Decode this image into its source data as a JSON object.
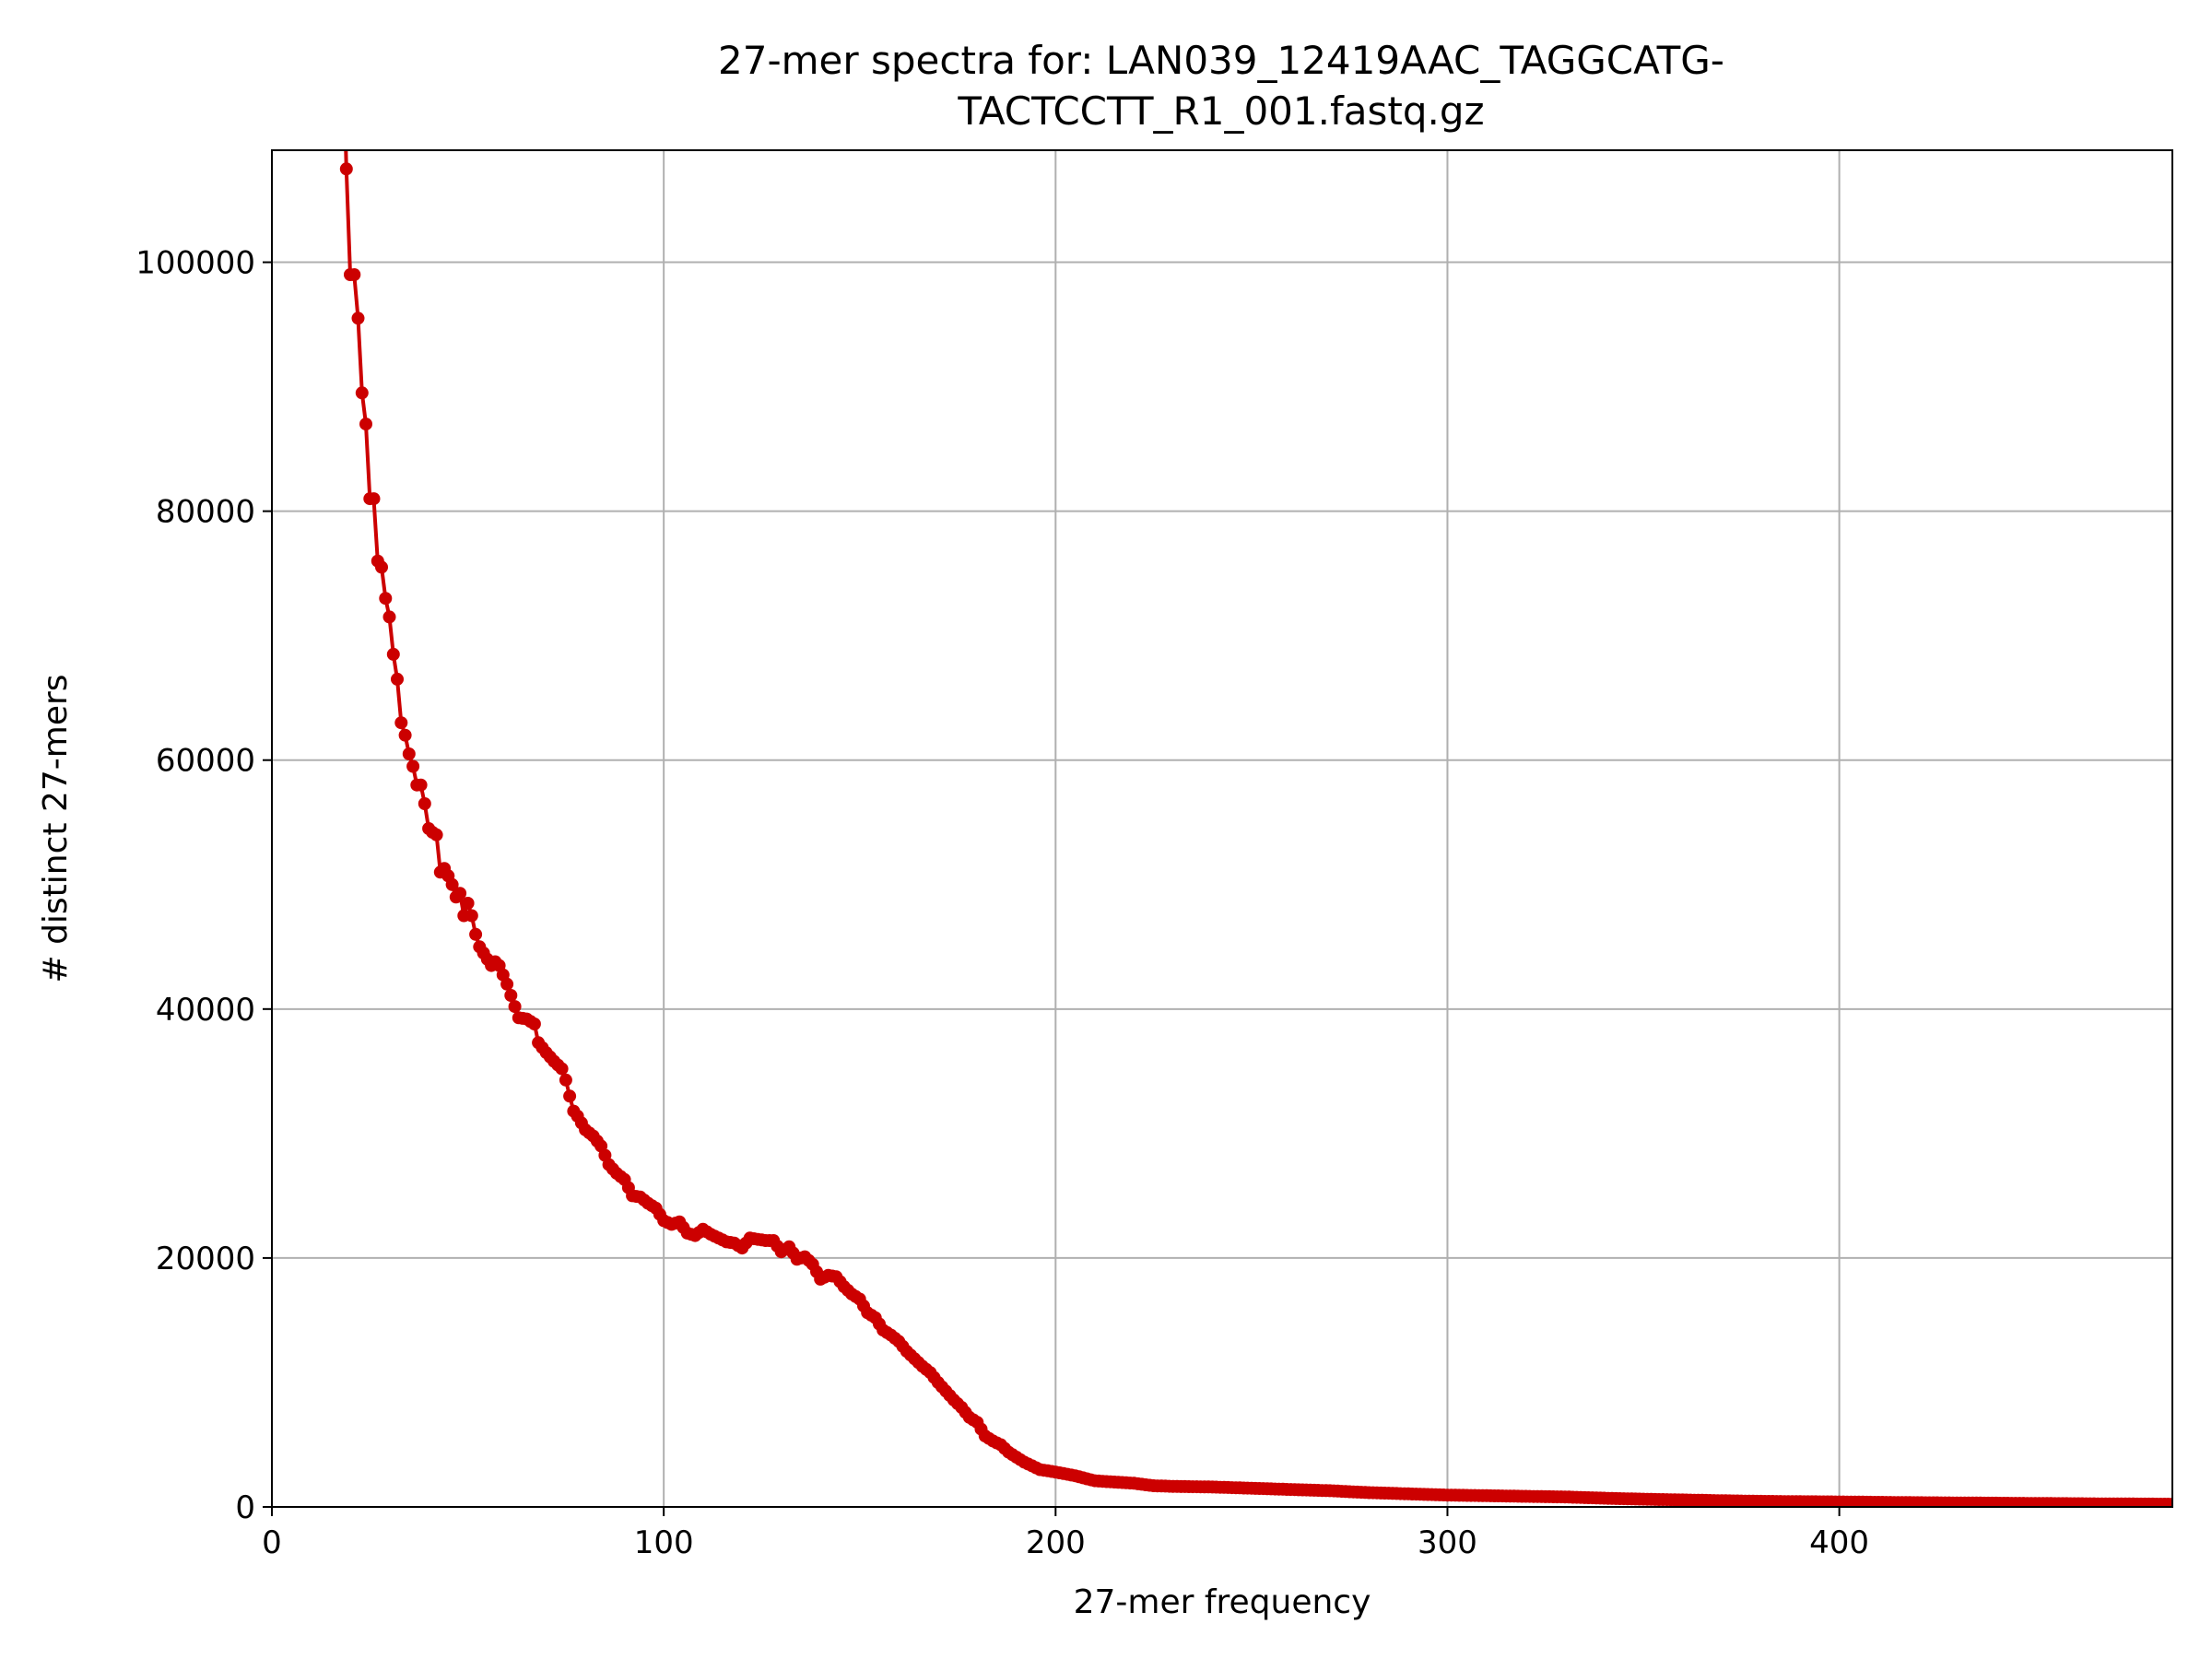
{
  "chart_data": {
    "type": "line",
    "title_lines": [
      "27-mer spectra for: LAN039_12419AAC_TAGGCATG-",
      "TACTCCTT_R1_001.fastq.gz"
    ],
    "xlabel": "27-mer frequency",
    "ylabel": "# distinct 27-mers",
    "xlim": [
      0,
      485
    ],
    "ylim": [
      0,
      109000
    ],
    "xticks": [
      0,
      100,
      200,
      300,
      400
    ],
    "yticks": [
      0,
      20000,
      40000,
      60000,
      80000,
      100000
    ],
    "grid": true,
    "series_color": "#cc0000",
    "anchor_points": [
      [
        18,
        120000
      ],
      [
        19,
        107500
      ],
      [
        20,
        99000
      ],
      [
        21,
        99000
      ],
      [
        22,
        95500
      ],
      [
        23,
        89500
      ],
      [
        24,
        87000
      ],
      [
        25,
        81000
      ],
      [
        26,
        81000
      ],
      [
        27,
        76000
      ],
      [
        28,
        75500
      ],
      [
        29,
        73000
      ],
      [
        30,
        71500
      ],
      [
        31,
        68500
      ],
      [
        32,
        66500
      ],
      [
        33,
        63000
      ],
      [
        34,
        62000
      ],
      [
        35,
        60500
      ],
      [
        36,
        59500
      ],
      [
        37,
        58000
      ],
      [
        38,
        58000
      ],
      [
        39,
        56500
      ],
      [
        40,
        54500
      ],
      [
        41,
        54200
      ],
      [
        42,
        54000
      ],
      [
        43,
        51000
      ],
      [
        44,
        51300
      ],
      [
        45,
        50700
      ],
      [
        46,
        50000
      ],
      [
        47,
        49000
      ],
      [
        48,
        49300
      ],
      [
        49,
        47500
      ],
      [
        50,
        48500
      ],
      [
        51,
        47500
      ],
      [
        52,
        46000
      ],
      [
        53,
        45000
      ],
      [
        54,
        44500
      ],
      [
        55,
        44000
      ],
      [
        56,
        43500
      ],
      [
        57,
        43800
      ],
      [
        58,
        43500
      ],
      [
        60,
        42000
      ],
      [
        62,
        40200
      ],
      [
        63,
        39300
      ],
      [
        65,
        39200
      ],
      [
        67,
        38800
      ],
      [
        68,
        37300
      ],
      [
        70,
        36500
      ],
      [
        72,
        35800
      ],
      [
        74,
        35200
      ],
      [
        75,
        34300
      ],
      [
        76,
        33000
      ],
      [
        77,
        31800
      ],
      [
        78,
        31400
      ],
      [
        80,
        30300
      ],
      [
        82,
        29800
      ],
      [
        84,
        29000
      ],
      [
        86,
        27500
      ],
      [
        88,
        26800
      ],
      [
        90,
        26300
      ],
      [
        92,
        25000
      ],
      [
        94,
        24900
      ],
      [
        96,
        24400
      ],
      [
        98,
        24000
      ],
      [
        100,
        23000
      ],
      [
        102,
        22700
      ],
      [
        104,
        22900
      ],
      [
        106,
        22000
      ],
      [
        108,
        21800
      ],
      [
        110,
        22300
      ],
      [
        112,
        21900
      ],
      [
        114,
        21600
      ],
      [
        116,
        21300
      ],
      [
        118,
        21200
      ],
      [
        120,
        20800
      ],
      [
        122,
        21600
      ],
      [
        124,
        21500
      ],
      [
        126,
        21400
      ],
      [
        128,
        21400
      ],
      [
        130,
        20500
      ],
      [
        132,
        20900
      ],
      [
        134,
        19900
      ],
      [
        136,
        20100
      ],
      [
        138,
        19500
      ],
      [
        140,
        18300
      ],
      [
        142,
        18600
      ],
      [
        144,
        18500
      ],
      [
        146,
        17700
      ],
      [
        148,
        17100
      ],
      [
        150,
        16700
      ],
      [
        152,
        15600
      ],
      [
        154,
        15200
      ],
      [
        156,
        14200
      ],
      [
        158,
        13800
      ],
      [
        160,
        13300
      ],
      [
        162,
        12500
      ],
      [
        164,
        11900
      ],
      [
        166,
        11300
      ],
      [
        168,
        10800
      ],
      [
        170,
        10000
      ],
      [
        172,
        9300
      ],
      [
        174,
        8600
      ],
      [
        176,
        8000
      ],
      [
        178,
        7200
      ],
      [
        180,
        6800
      ],
      [
        182,
        5700
      ],
      [
        184,
        5300
      ],
      [
        186,
        5000
      ],
      [
        188,
        4400
      ],
      [
        190,
        4000
      ],
      [
        192,
        3600
      ],
      [
        194,
        3300
      ],
      [
        196,
        3000
      ],
      [
        198,
        2900
      ],
      [
        200,
        2800
      ],
      [
        205,
        2500
      ],
      [
        210,
        2100
      ],
      [
        215,
        2000
      ],
      [
        220,
        1900
      ],
      [
        225,
        1700
      ],
      [
        230,
        1650
      ],
      [
        240,
        1600
      ],
      [
        250,
        1500
      ],
      [
        260,
        1400
      ],
      [
        270,
        1300
      ],
      [
        280,
        1150
      ],
      [
        290,
        1050
      ],
      [
        300,
        950
      ],
      [
        310,
        900
      ],
      [
        320,
        850
      ],
      [
        330,
        800
      ],
      [
        340,
        700
      ],
      [
        350,
        620
      ],
      [
        360,
        560
      ],
      [
        370,
        500
      ],
      [
        380,
        450
      ],
      [
        390,
        420
      ],
      [
        400,
        400
      ],
      [
        410,
        370
      ],
      [
        420,
        340
      ],
      [
        430,
        320
      ],
      [
        440,
        300
      ],
      [
        450,
        280
      ],
      [
        460,
        260
      ],
      [
        470,
        240
      ],
      [
        485,
        220
      ]
    ]
  }
}
